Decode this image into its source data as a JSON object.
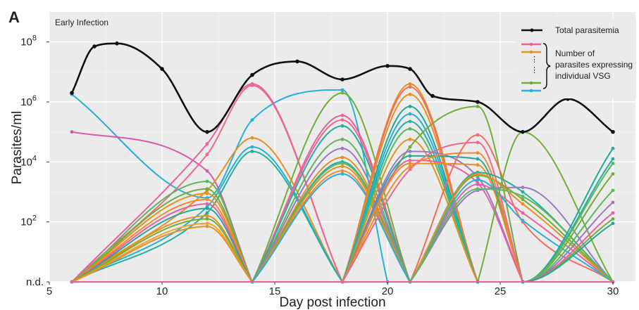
{
  "chart_data": {
    "type": "line",
    "panel_label": "A",
    "annotation": "Early Infection",
    "xlabel": "Day post infection",
    "ylabel": "Parasites/ml",
    "xlim": [
      5,
      31
    ],
    "ylim": [
      0,
      9
    ],
    "x_ticks": [
      5,
      10,
      15,
      20,
      25,
      30
    ],
    "y_ticks": [
      {
        "value": 0,
        "label": "n.d."
      },
      {
        "value": 2,
        "label": "10",
        "exp": "2"
      },
      {
        "value": 4,
        "label": "10",
        "exp": "4"
      },
      {
        "value": 6,
        "label": "10",
        "exp": "6"
      },
      {
        "value": 8,
        "label": "10",
        "exp": "8"
      }
    ],
    "grid": true,
    "legend_position": "top-right",
    "legend": {
      "total": "Total parasitemia",
      "vsg_lines": [
        "Number of",
        "parasites expressing",
        "individual VSG"
      ],
      "vsg_colors": [
        "#e8609f",
        "#e69020",
        "#6fae3c",
        "#27b0d8"
      ]
    },
    "total": {
      "x": [
        6,
        7,
        8,
        10,
        12,
        14,
        16,
        18,
        20,
        21,
        22,
        24,
        26,
        28,
        30
      ],
      "y": [
        6.3,
        7.85,
        7.95,
        7.1,
        5.0,
        6.9,
        7.35,
        6.75,
        7.2,
        7.1,
        6.2,
        6.0,
        5.0,
        6.1,
        5.0
      ],
      "color": "#111111"
    },
    "series": [
      {
        "color": "#27b0d8",
        "x": [
          6,
          12,
          14,
          18,
          20
        ],
        "y": [
          6.25,
          2.8,
          5.4,
          6.4,
          0
        ]
      },
      {
        "color": "#d65aa8",
        "x": [
          6,
          12,
          14
        ],
        "y": [
          5.0,
          3.7,
          0
        ]
      },
      {
        "color": "#e8609f",
        "x": [
          6,
          12,
          14,
          18
        ],
        "y": [
          0,
          4.6,
          6.6,
          0
        ]
      },
      {
        "color": "#ef6a8a",
        "x": [
          6,
          12,
          14,
          18
        ],
        "y": [
          0,
          4.25,
          6.55,
          0
        ]
      },
      {
        "color": "#e69020",
        "x": [
          6,
          12,
          14,
          18
        ],
        "y": [
          0,
          3.05,
          4.8,
          0
        ]
      },
      {
        "color": "#27b0d8",
        "x": [
          6,
          12,
          14,
          18
        ],
        "y": [
          0,
          2.5,
          4.5,
          0
        ]
      },
      {
        "color": "#22b0a0",
        "x": [
          6,
          12,
          14,
          18
        ],
        "y": [
          0,
          2.3,
          4.35,
          0
        ]
      },
      {
        "color": "#5cb85c",
        "x": [
          6,
          12,
          14
        ],
        "y": [
          0,
          3.35,
          0
        ]
      },
      {
        "color": "#6fae3c",
        "x": [
          6,
          12,
          14
        ],
        "y": [
          0,
          3.1,
          0
        ]
      },
      {
        "color": "#e69020",
        "x": [
          6,
          12,
          14
        ],
        "y": [
          0,
          2.95,
          0
        ]
      },
      {
        "color": "#f28a30",
        "x": [
          6,
          12,
          14
        ],
        "y": [
          0,
          2.75,
          0
        ]
      },
      {
        "color": "#e8609f",
        "x": [
          6,
          12,
          14
        ],
        "y": [
          0,
          2.6,
          0
        ]
      },
      {
        "color": "#26a69a",
        "x": [
          6,
          12,
          14
        ],
        "y": [
          0,
          2.45,
          0
        ]
      },
      {
        "color": "#e69020",
        "x": [
          6,
          12,
          14
        ],
        "y": [
          0,
          2.2,
          0
        ]
      },
      {
        "color": "#6fae3c",
        "x": [
          6,
          12,
          14
        ],
        "y": [
          0,
          2.1,
          0
        ]
      },
      {
        "color": "#f5a030",
        "x": [
          6,
          12,
          14
        ],
        "y": [
          0,
          1.95,
          0
        ]
      },
      {
        "color": "#e69020",
        "x": [
          6,
          12,
          14
        ],
        "y": [
          0,
          1.85,
          0
        ]
      },
      {
        "color": "#6fae3c",
        "x": [
          14,
          18,
          21
        ],
        "y": [
          0,
          6.3,
          0
        ]
      },
      {
        "color": "#e8609f",
        "x": [
          14,
          18,
          21
        ],
        "y": [
          0,
          5.55,
          0
        ]
      },
      {
        "color": "#ef6a8a",
        "x": [
          14,
          18,
          21
        ],
        "y": [
          0,
          5.4,
          0
        ]
      },
      {
        "color": "#22b0a0",
        "x": [
          14,
          18,
          21
        ],
        "y": [
          0,
          5.2,
          0
        ]
      },
      {
        "color": "#5cb85c",
        "x": [
          14,
          18,
          21
        ],
        "y": [
          0,
          4.75,
          0
        ]
      },
      {
        "color": "#9a78c8",
        "x": [
          14,
          18,
          21
        ],
        "y": [
          0,
          4.45,
          0
        ]
      },
      {
        "color": "#e69020",
        "x": [
          14,
          18,
          21
        ],
        "y": [
          0,
          4.15,
          0
        ]
      },
      {
        "color": "#22b0a0",
        "x": [
          14,
          18,
          21
        ],
        "y": [
          0,
          4.0,
          0
        ]
      },
      {
        "color": "#5cb85c",
        "x": [
          14,
          18,
          21
        ],
        "y": [
          0,
          3.95,
          0
        ]
      },
      {
        "color": "#e69020",
        "x": [
          14,
          18,
          21
        ],
        "y": [
          0,
          3.85,
          0
        ]
      },
      {
        "color": "#f28a30",
        "x": [
          14,
          18,
          21
        ],
        "y": [
          0,
          3.7,
          0
        ]
      },
      {
        "color": "#27b0d8",
        "x": [
          14,
          18,
          21
        ],
        "y": [
          0,
          3.6,
          0
        ]
      },
      {
        "color": "#e69020",
        "x": [
          18,
          21,
          24
        ],
        "y": [
          0,
          6.6,
          0
        ]
      },
      {
        "color": "#f26b5e",
        "x": [
          18,
          21,
          24
        ],
        "y": [
          0,
          6.5,
          0
        ]
      },
      {
        "color": "#e69020",
        "x": [
          18,
          21,
          24
        ],
        "y": [
          0,
          6.25,
          0
        ]
      },
      {
        "color": "#26a69a",
        "x": [
          18,
          21,
          24
        ],
        "y": [
          0,
          5.85,
          0
        ]
      },
      {
        "color": "#27b0d8",
        "x": [
          18,
          21,
          24
        ],
        "y": [
          0,
          5.6,
          0
        ]
      },
      {
        "color": "#22b0a0",
        "x": [
          18,
          21,
          24
        ],
        "y": [
          0,
          5.35,
          0
        ]
      },
      {
        "color": "#5cb85c",
        "x": [
          18,
          21,
          24
        ],
        "y": [
          0,
          5.1,
          0
        ]
      },
      {
        "color": "#e69020",
        "x": [
          18,
          21,
          24
        ],
        "y": [
          0,
          4.75,
          0
        ]
      },
      {
        "color": "#6fae3c",
        "x": [
          18,
          21,
          24,
          26
        ],
        "y": [
          0,
          4.5,
          5.85,
          0
        ]
      },
      {
        "color": "#9a78c8",
        "x": [
          18,
          21,
          24,
          26
        ],
        "y": [
          0,
          4.35,
          3.5,
          0
        ]
      },
      {
        "color": "#26a69a",
        "x": [
          18,
          21,
          24,
          26
        ],
        "y": [
          0,
          4.2,
          4.1,
          0
        ]
      },
      {
        "color": "#e8609f",
        "x": [
          18,
          21,
          24,
          26
        ],
        "y": [
          0,
          4.05,
          3.3,
          0
        ]
      },
      {
        "color": "#e69020",
        "x": [
          18,
          21,
          24,
          26
        ],
        "y": [
          0,
          3.95,
          3.9,
          0
        ]
      },
      {
        "color": "#f28a30",
        "x": [
          18,
          21,
          24,
          26
        ],
        "y": [
          0,
          3.85,
          4.3,
          0
        ]
      },
      {
        "color": "#ef6a8a",
        "x": [
          18,
          21,
          24,
          26
        ],
        "y": [
          0,
          3.75,
          4.65,
          0
        ]
      },
      {
        "color": "#e8609f",
        "x": [
          21,
          24,
          26,
          30
        ],
        "y": [
          0,
          3.25,
          2.3,
          0
        ]
      },
      {
        "color": "#f26b5e",
        "x": [
          21,
          24,
          26,
          30
        ],
        "y": [
          0,
          4.9,
          2.0,
          0
        ]
      },
      {
        "color": "#22b0a0",
        "x": [
          21,
          24,
          26,
          30
        ],
        "y": [
          0,
          3.65,
          3.0,
          0
        ]
      },
      {
        "color": "#9a78c8",
        "x": [
          21,
          24,
          26,
          30
        ],
        "y": [
          0,
          3.05,
          3.15,
          0
        ]
      },
      {
        "color": "#27b0d8",
        "x": [
          21,
          24,
          26,
          30
        ],
        "y": [
          0,
          3.4,
          2.05,
          0
        ]
      },
      {
        "color": "#6fae3c",
        "x": [
          21,
          24,
          26,
          30
        ],
        "y": [
          0,
          3.55,
          2.75,
          0
        ]
      },
      {
        "color": "#e69020",
        "x": [
          21,
          24,
          26,
          30
        ],
        "y": [
          0,
          3.6,
          2.6,
          0
        ]
      },
      {
        "color": "#5cb85c",
        "x": [
          21,
          24,
          26,
          30
        ],
        "y": [
          0,
          3.1,
          2.85,
          0
        ]
      },
      {
        "color": "#6fae3c",
        "x": [
          24,
          26,
          30
        ],
        "y": [
          0,
          5.0,
          0
        ]
      },
      {
        "color": "#26a69a",
        "x": [
          24,
          26,
          30
        ],
        "y": [
          0,
          0,
          4.45
        ]
      },
      {
        "color": "#22b0a0",
        "x": [
          24,
          26,
          30
        ],
        "y": [
          0,
          0,
          4.1
        ]
      },
      {
        "color": "#5cb85c",
        "x": [
          24,
          26,
          30
        ],
        "y": [
          0,
          0,
          3.95
        ]
      },
      {
        "color": "#6fae3c",
        "x": [
          24,
          26,
          30
        ],
        "y": [
          0,
          0,
          3.6
        ]
      },
      {
        "color": "#5cb85c",
        "x": [
          24,
          26,
          30
        ],
        "y": [
          0,
          0,
          3.05
        ]
      },
      {
        "color": "#9a78c8",
        "x": [
          24,
          26,
          30
        ],
        "y": [
          0,
          0,
          2.65
        ]
      },
      {
        "color": "#e8609f",
        "x": [
          24,
          26,
          30
        ],
        "y": [
          0,
          0,
          2.3
        ]
      },
      {
        "color": "#6fae3c",
        "x": [
          24,
          26,
          30
        ],
        "y": [
          0,
          0,
          2.1
        ]
      },
      {
        "color": "#26a69a",
        "x": [
          24,
          26,
          30
        ],
        "y": [
          0,
          0,
          1.95
        ]
      },
      {
        "color": "#e8609f",
        "x": [
          6,
          30
        ],
        "y": [
          0,
          0
        ]
      }
    ]
  }
}
